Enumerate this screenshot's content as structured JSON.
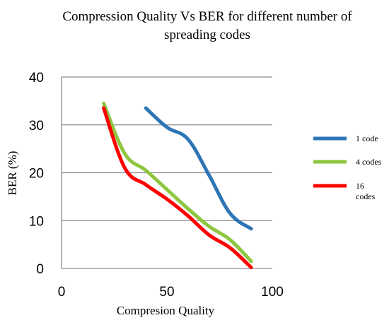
{
  "chart_data": {
    "type": "line",
    "title": [
      "Compression Quality Vs BER for different number of",
      "spreading codes"
    ],
    "xlabel": "Compresion Quality",
    "ylabel": "BER (%)",
    "xlim": [
      0,
      100
    ],
    "ylim": [
      0,
      40
    ],
    "xticks": [
      0,
      50,
      100
    ],
    "yticks": [
      0,
      10,
      20,
      30,
      40
    ],
    "grid": "horizontal",
    "legend_position": "right",
    "series": [
      {
        "name": "1 code",
        "color": "#2e75b6",
        "x": [
          40,
          50,
          60,
          70,
          80,
          90
        ],
        "y": [
          33.5,
          29.5,
          27,
          19.5,
          11.5,
          8.3
        ]
      },
      {
        "name": "4 codes",
        "color": "#8dc63f",
        "x": [
          20,
          30,
          40,
          50,
          60,
          70,
          80,
          90
        ],
        "y": [
          34.5,
          24,
          20.5,
          16.5,
          12.5,
          8.8,
          6,
          1.5
        ]
      },
      {
        "name": "16 codes",
        "color": "#ff0000",
        "x": [
          20,
          30,
          40,
          50,
          60,
          70,
          80,
          90
        ],
        "y": [
          33.5,
          21,
          17.5,
          14.5,
          11,
          7,
          4.3,
          0.2
        ]
      }
    ]
  }
}
